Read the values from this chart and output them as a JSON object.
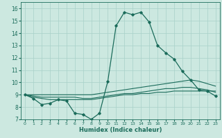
{
  "xlabel": "Humidex (Indice chaleur)",
  "background_color": "#cce8e0",
  "grid_color": "#a8d0c8",
  "line_color": "#1a6b5a",
  "xlim": [
    -0.5,
    23.5
  ],
  "ylim": [
    7,
    16.5
  ],
  "yticks": [
    7,
    8,
    9,
    10,
    11,
    12,
    13,
    14,
    15,
    16
  ],
  "xticks": [
    0,
    1,
    2,
    3,
    4,
    5,
    6,
    7,
    8,
    9,
    10,
    11,
    12,
    13,
    14,
    15,
    16,
    17,
    18,
    19,
    20,
    21,
    22,
    23
  ],
  "series_main": {
    "x": [
      0,
      1,
      2,
      3,
      4,
      5,
      6,
      7,
      8,
      9,
      10,
      11,
      12,
      13,
      14,
      15,
      16,
      17,
      18,
      19,
      20,
      21,
      22,
      23
    ],
    "y": [
      9.0,
      8.7,
      8.2,
      8.3,
      8.6,
      8.5,
      7.5,
      7.4,
      7.0,
      7.5,
      10.1,
      14.6,
      15.7,
      15.5,
      15.7,
      14.9,
      13.0,
      12.4,
      11.9,
      10.9,
      10.2,
      9.4,
      9.3,
      8.9
    ]
  },
  "series_flat": [
    {
      "x": [
        0,
        1,
        2,
        3,
        4,
        5,
        6,
        7,
        8,
        9,
        10,
        11,
        12,
        13,
        14,
        15,
        16,
        17,
        18,
        19,
        20,
        21,
        22,
        23
      ],
      "y": [
        9.0,
        8.8,
        8.7,
        8.6,
        8.6,
        8.6,
        8.6,
        8.6,
        8.6,
        8.7,
        8.8,
        8.9,
        9.0,
        9.0,
        9.1,
        9.1,
        9.2,
        9.2,
        9.3,
        9.3,
        9.3,
        9.3,
        9.3,
        9.3
      ]
    },
    {
      "x": [
        0,
        1,
        2,
        3,
        4,
        5,
        6,
        7,
        8,
        9,
        10,
        11,
        12,
        13,
        14,
        15,
        16,
        17,
        18,
        19,
        20,
        21,
        22,
        23
      ],
      "y": [
        9.0,
        8.9,
        8.8,
        8.8,
        8.8,
        8.8,
        8.8,
        8.7,
        8.7,
        8.8,
        8.9,
        9.0,
        9.1,
        9.1,
        9.2,
        9.3,
        9.4,
        9.5,
        9.5,
        9.6,
        9.6,
        9.5,
        9.4,
        9.2
      ]
    },
    {
      "x": [
        0,
        1,
        2,
        3,
        4,
        5,
        6,
        7,
        8,
        9,
        10,
        11,
        12,
        13,
        14,
        15,
        16,
        17,
        18,
        19,
        20,
        21,
        22,
        23
      ],
      "y": [
        9.0,
        9.0,
        9.0,
        9.0,
        9.0,
        9.0,
        9.0,
        9.0,
        9.0,
        9.1,
        9.2,
        9.3,
        9.4,
        9.5,
        9.6,
        9.7,
        9.8,
        9.9,
        10.0,
        10.1,
        10.2,
        10.1,
        9.9,
        9.7
      ]
    }
  ]
}
